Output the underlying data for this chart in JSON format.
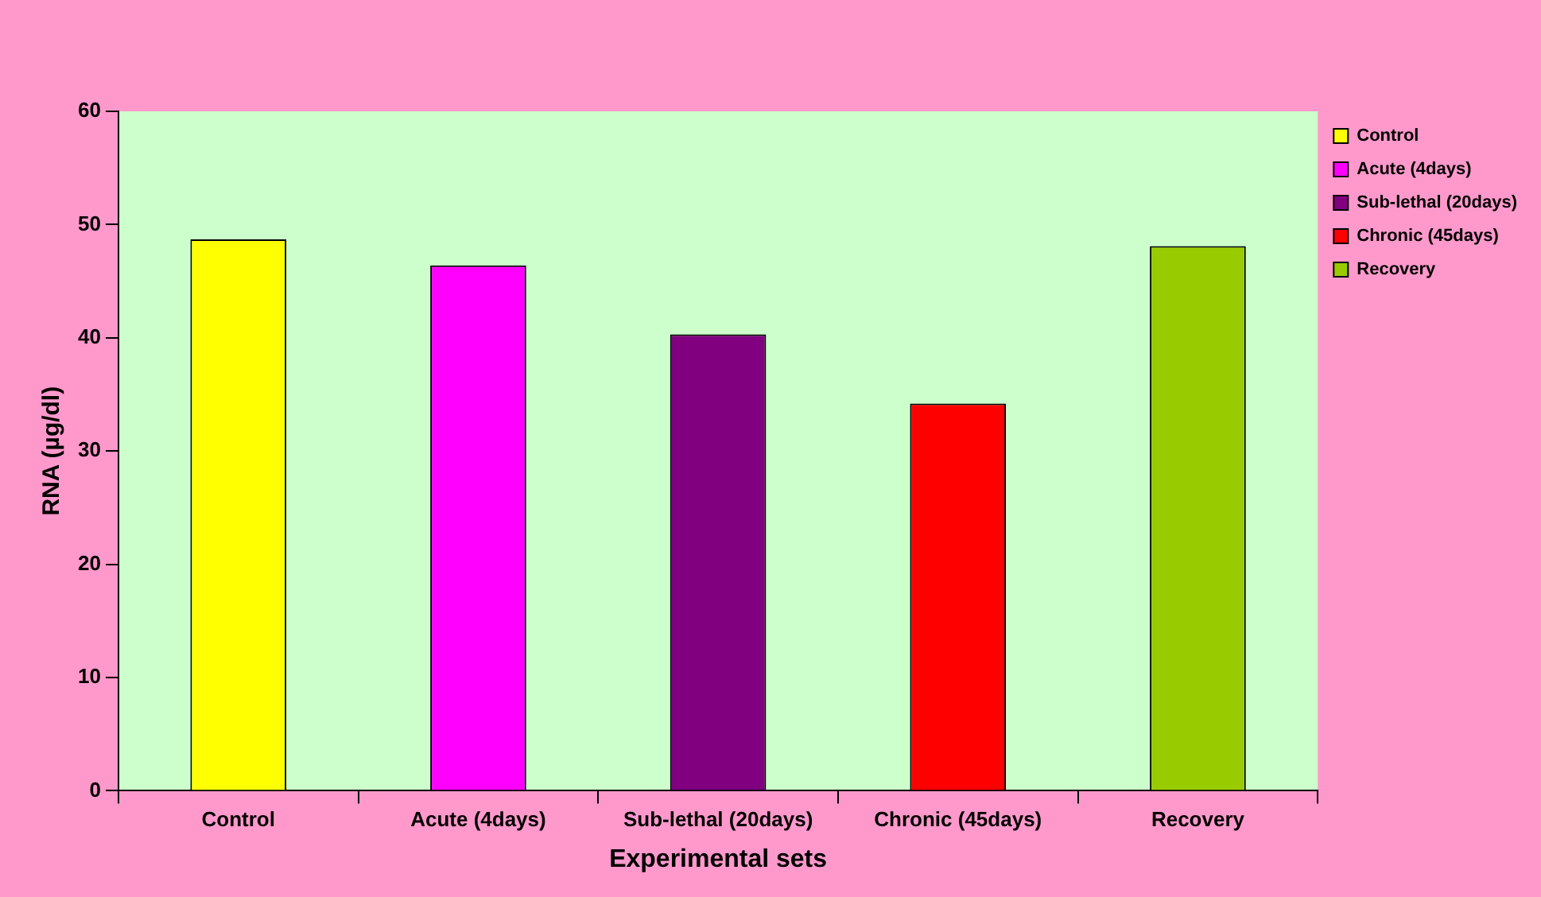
{
  "chart_data": {
    "type": "bar",
    "xlabel": "Experimental sets",
    "ylabel": "RNA (µg/dl)",
    "categories": [
      "Control",
      "Acute (4days)",
      "Sub-lethal (20days)",
      "Chronic (45days)",
      "Recovery"
    ],
    "series": [
      {
        "name": "Control",
        "color": "#ffff00",
        "values": [
          48.7,
          null,
          null,
          null,
          null
        ]
      },
      {
        "name": "Acute (4days)",
        "color": "#ff00ff",
        "values": [
          null,
          46.4,
          null,
          null,
          null
        ]
      },
      {
        "name": "Sub-lethal (20days)",
        "color": "#800080",
        "values": [
          null,
          null,
          40.3,
          null,
          null
        ]
      },
      {
        "name": "Chronic (45days)",
        "color": "#ff0000",
        "values": [
          null,
          null,
          null,
          34.2,
          null
        ]
      },
      {
        "name": "Recovery",
        "color": "#99cc00",
        "values": [
          null,
          null,
          null,
          null,
          48.1
        ]
      }
    ],
    "ylim": [
      0,
      60
    ],
    "yticks": [
      0,
      10,
      20,
      30,
      40,
      50,
      60
    ],
    "grid": false,
    "legend": "top right"
  }
}
